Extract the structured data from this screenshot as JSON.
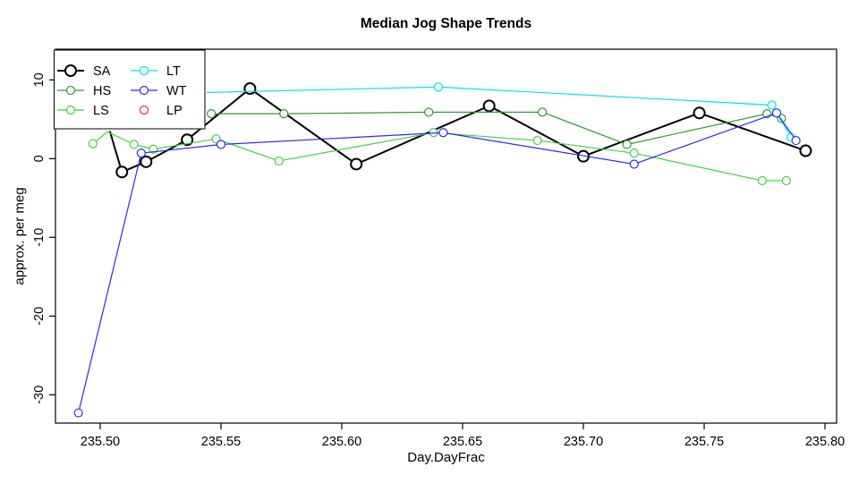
{
  "chart_data": {
    "type": "line",
    "title": "Median Jog Shape Trends",
    "xlabel": "Day.DayFrac",
    "ylabel": "approx. per meg",
    "xlim": [
      235.4815,
      235.8048
    ],
    "ylim": [
      -33.6,
      13.9
    ],
    "grid": false,
    "legend_position": "topleft",
    "x_ticks": [
      {
        "v": 235.5,
        "label": "235.50"
      },
      {
        "v": 235.55,
        "label": "235.55"
      },
      {
        "v": 235.6,
        "label": "235.60"
      },
      {
        "v": 235.65,
        "label": "235.65"
      },
      {
        "v": 235.7,
        "label": "235.70"
      },
      {
        "v": 235.75,
        "label": "235.75"
      },
      {
        "v": 235.8,
        "label": "235.80"
      }
    ],
    "y_ticks": [
      {
        "v": 10,
        "label": "10"
      },
      {
        "v": 0,
        "label": "0"
      },
      {
        "v": -10,
        "label": "-10"
      },
      {
        "v": -20,
        "label": "-20"
      },
      {
        "v": -30,
        "label": "-30"
      }
    ],
    "series": [
      {
        "name": "SA",
        "color": "#000000",
        "line_width": 2,
        "marker_radius": 6,
        "points": [
          [
            235.504,
            3.5
          ],
          [
            235.509,
            -1.7
          ],
          [
            235.519,
            -0.4
          ],
          [
            235.536,
            2.4
          ],
          [
            235.562,
            8.9
          ],
          [
            235.606,
            -0.7
          ],
          [
            235.661,
            6.7
          ],
          [
            235.7,
            0.3
          ],
          [
            235.748,
            5.8
          ],
          [
            235.792,
            1.0
          ]
        ],
        "unmarked": [
          0
        ]
      },
      {
        "name": "HS",
        "color": "#339933",
        "line_width": 1.2,
        "marker_radius": 4.5,
        "points": [
          [
            235.546,
            5.7
          ],
          [
            235.576,
            5.7
          ],
          [
            235.636,
            5.9
          ],
          [
            235.683,
            5.9
          ],
          [
            235.718,
            1.8
          ],
          [
            235.776,
            5.7
          ],
          [
            235.782,
            5.1
          ]
        ],
        "unmarked": []
      },
      {
        "name": "LS",
        "color": "#3fd43f",
        "line_width": 1.2,
        "marker_radius": 4.5,
        "points": [
          [
            235.497,
            1.9
          ],
          [
            235.503,
            3.4
          ],
          [
            235.514,
            1.8
          ],
          [
            235.522,
            1.2
          ],
          [
            235.548,
            2.5
          ],
          [
            235.574,
            -0.3
          ],
          [
            235.638,
            3.3
          ],
          [
            235.681,
            2.3
          ],
          [
            235.721,
            0.7
          ],
          [
            235.774,
            -2.8
          ],
          [
            235.784,
            -2.8
          ]
        ],
        "unmarked": [
          1
        ]
      },
      {
        "name": "LT",
        "color": "#00e5e5",
        "line_width": 1.2,
        "marker_radius": 4.5,
        "points": [
          [
            235.544,
            8.4
          ],
          [
            235.64,
            9.1
          ],
          [
            235.778,
            6.8
          ],
          [
            235.786,
            2.7
          ]
        ],
        "unmarked": [
          0
        ]
      },
      {
        "name": "WT",
        "color": "#2b2bf0",
        "line_width": 1.2,
        "marker_radius": 4.5,
        "points": [
          [
            235.491,
            -32.3
          ],
          [
            235.517,
            0.7
          ],
          [
            235.55,
            1.8
          ],
          [
            235.642,
            3.3
          ],
          [
            235.721,
            -0.7
          ],
          [
            235.78,
            5.8
          ],
          [
            235.788,
            2.3
          ]
        ],
        "unmarked": []
      },
      {
        "name": "LP",
        "color": "#ee2a2a",
        "line_width": 1.2,
        "marker_radius": 4.5,
        "points": [],
        "unmarked": [],
        "marker_only": true
      }
    ]
  }
}
